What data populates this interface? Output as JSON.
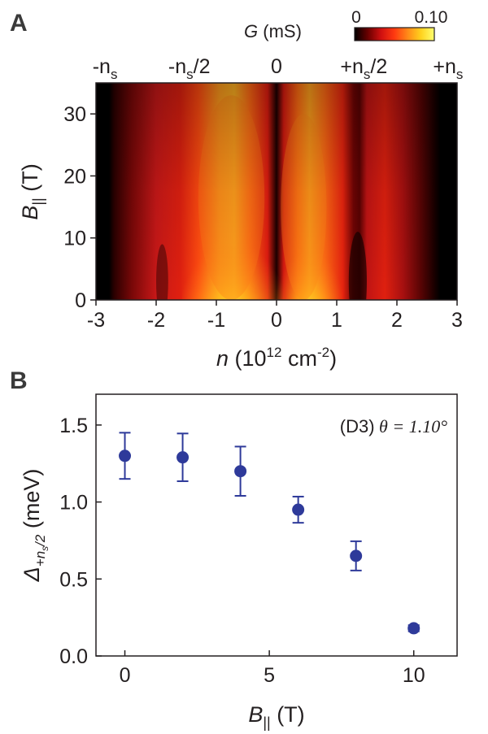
{
  "chart_data": [
    {
      "panel": "A",
      "type": "heatmap",
      "xlabel_var": "n",
      "xlabel_unit": "(10",
      "xlabel_exp": "12",
      "xlabel_unit2": " cm",
      "xlabel_exp2": "-2",
      "xlabel_close": ")",
      "ylabel_var": "B",
      "ylabel_sub": "||",
      "ylabel_unit": " (T)",
      "xlim": [
        -3,
        3
      ],
      "ylim": [
        0,
        35
      ],
      "x_ticks": [
        "-3",
        "-2",
        "-1",
        "0",
        "1",
        "2",
        "3"
      ],
      "x_tick_values": [
        -3,
        -2,
        -1,
        0,
        1,
        2,
        3
      ],
      "y_ticks": [
        "0",
        "10",
        "20",
        "30"
      ],
      "y_tick_values": [
        0,
        10,
        20,
        30
      ],
      "top_axis_labels": [
        {
          "base": "-n",
          "sub": "s",
          "suffix": "",
          "x": -2.85
        },
        {
          "base": "-n",
          "sub": "s",
          "suffix": "/2",
          "x": -1.45
        },
        {
          "base": "0",
          "sub": "",
          "suffix": "",
          "x": 0
        },
        {
          "base": "+n",
          "sub": "s",
          "suffix": "/2",
          "x": 1.45
        },
        {
          "base": "+n",
          "sub": "s",
          "suffix": "",
          "x": 2.85
        }
      ],
      "colorbar": {
        "title_var": "G",
        "title_unit": " (mS)",
        "min": 0,
        "max": 0.1,
        "tick_labels": [
          "0",
          "0.10"
        ],
        "colors": [
          "#000000",
          "#6a0000",
          "#d01010",
          "#ff3a10",
          "#ff8a18",
          "#ffd21e",
          "#ffff70"
        ]
      },
      "features": [
        {
          "x": -0.75,
          "level": 0.98,
          "note": "bright conductance at low field"
        },
        {
          "x": 0.55,
          "level": 0.95,
          "note": "bright conductance at low field"
        },
        {
          "x": -2.85,
          "level": 0.0,
          "note": "insulating edge"
        },
        {
          "x": 2.85,
          "level": 0.0,
          "note": "insulating edge"
        }
      ]
    },
    {
      "panel": "B",
      "type": "scatter",
      "xlabel_var": "B",
      "xlabel_sub": "||",
      "xlabel_unit": " (T)",
      "ylabel_var": "Δ",
      "ylabel_sub": "+n",
      "ylabel_subsub": "s",
      "ylabel_subsuffix": "/2",
      "ylabel_unit": " (meV)",
      "xlim": [
        -1.0,
        11.5
      ],
      "ylim": [
        0.0,
        1.7
      ],
      "x_ticks": [
        "0",
        "5",
        "10"
      ],
      "x_tick_values": [
        0,
        5,
        10
      ],
      "y_ticks": [
        "0.0",
        "0.5",
        "1.0",
        "1.5"
      ],
      "y_tick_values": [
        0.0,
        0.5,
        1.0,
        1.5
      ],
      "annotation_device": "(D3)",
      "annotation_theta": "θ = 1.10°",
      "marker_color": "#2e3a9a",
      "x": [
        0,
        2,
        4,
        6,
        8,
        10
      ],
      "y": [
        1.3,
        1.29,
        1.2,
        0.95,
        0.65,
        0.18
      ],
      "yerr": [
        0.15,
        0.155,
        0.16,
        0.085,
        0.095,
        0.02
      ]
    }
  ],
  "panel_labels": [
    "A",
    "B"
  ]
}
